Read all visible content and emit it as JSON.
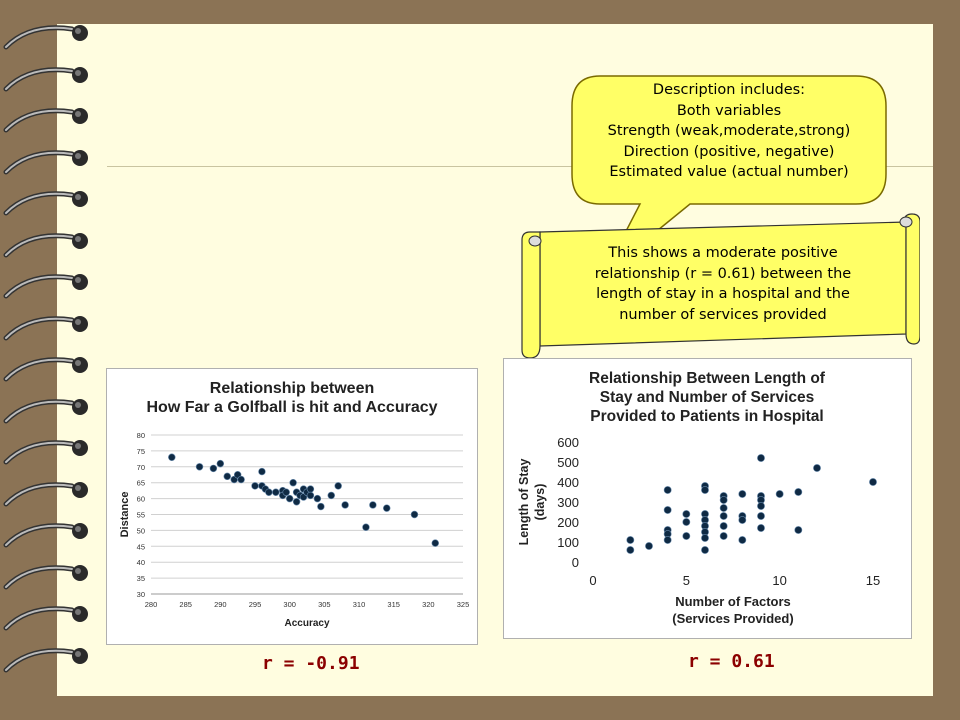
{
  "callout": {
    "lines": [
      "Description includes:",
      "Both variables",
      "Strength (weak,moderate,strong)",
      "Direction (positive, negative)",
      "Estimated value (actual number)"
    ]
  },
  "scroll": {
    "lines": [
      "This shows a moderate positive",
      "relationship (r = 0.61) between the",
      "length of stay in a hospital  and the",
      "number of services provided"
    ]
  },
  "r_values": {
    "left": "r = -0.91",
    "right": "r = 0.61"
  },
  "chart_data": [
    {
      "type": "scatter",
      "title": [
        "Relationship between",
        "How Far a Golfball is hit and Accuracy"
      ],
      "xlabel": "Accuracy",
      "ylabel": "Distance",
      "xlim": [
        280,
        325
      ],
      "ylim": [
        30,
        80
      ],
      "xticks": [
        280,
        285,
        290,
        295,
        300,
        305,
        310,
        315,
        320,
        325
      ],
      "yticks": [
        30,
        35,
        40,
        45,
        50,
        55,
        60,
        65,
        70,
        75,
        80
      ],
      "grid": true,
      "points": [
        [
          283,
          73
        ],
        [
          287,
          70
        ],
        [
          289,
          69.5
        ],
        [
          290,
          71
        ],
        [
          291,
          67
        ],
        [
          292,
          66
        ],
        [
          292.5,
          67.5
        ],
        [
          293,
          66
        ],
        [
          295,
          64
        ],
        [
          296,
          64
        ],
        [
          296,
          68.5
        ],
        [
          296.5,
          63
        ],
        [
          297,
          62
        ],
        [
          298,
          62
        ],
        [
          299,
          62.5
        ],
        [
          299,
          61
        ],
        [
          299.5,
          62
        ],
        [
          300,
          60
        ],
        [
          300.5,
          65
        ],
        [
          301,
          62
        ],
        [
          301,
          59
        ],
        [
          301.5,
          61
        ],
        [
          302,
          63
        ],
        [
          302,
          60.5
        ],
        [
          302.5,
          62
        ],
        [
          303,
          63
        ],
        [
          303,
          61
        ],
        [
          304,
          60
        ],
        [
          304.5,
          57.5
        ],
        [
          306,
          61
        ],
        [
          307,
          64
        ],
        [
          308,
          58
        ],
        [
          311,
          51
        ],
        [
          312,
          58
        ],
        [
          314,
          57
        ],
        [
          318,
          55
        ],
        [
          321,
          46
        ]
      ]
    },
    {
      "type": "scatter",
      "title": [
        "Relationship Between Length of",
        "Stay and Number of Services",
        "Provided to Patients in Hospital"
      ],
      "xlabel": [
        "Number of Factors",
        "(Services Provided)"
      ],
      "ylabel": [
        "Length of Stay",
        "(days)"
      ],
      "xlim": [
        0,
        15
      ],
      "ylim": [
        0,
        600
      ],
      "xticks": [
        0,
        5,
        10,
        15
      ],
      "yticks": [
        0,
        100,
        200,
        300,
        400,
        500,
        600
      ],
      "grid": false,
      "points": [
        [
          2,
          60
        ],
        [
          2,
          110
        ],
        [
          3,
          80
        ],
        [
          4,
          360
        ],
        [
          4,
          260
        ],
        [
          4,
          160
        ],
        [
          4,
          140
        ],
        [
          4,
          110
        ],
        [
          5,
          240
        ],
        [
          5,
          200
        ],
        [
          5,
          130
        ],
        [
          6,
          380
        ],
        [
          6,
          360
        ],
        [
          6,
          240
        ],
        [
          6,
          210
        ],
        [
          6,
          180
        ],
        [
          6,
          150
        ],
        [
          6,
          120
        ],
        [
          6,
          60
        ],
        [
          7,
          330
        ],
        [
          7,
          310
        ],
        [
          7,
          270
        ],
        [
          7,
          230
        ],
        [
          7,
          180
        ],
        [
          7,
          130
        ],
        [
          8,
          340
        ],
        [
          8,
          230
        ],
        [
          8,
          210
        ],
        [
          8,
          110
        ],
        [
          9,
          520
        ],
        [
          9,
          330
        ],
        [
          9,
          310
        ],
        [
          9,
          280
        ],
        [
          9,
          230
        ],
        [
          9,
          170
        ],
        [
          10,
          340
        ],
        [
          11,
          350
        ],
        [
          11,
          160
        ],
        [
          12,
          470
        ],
        [
          15,
          400
        ]
      ]
    }
  ]
}
